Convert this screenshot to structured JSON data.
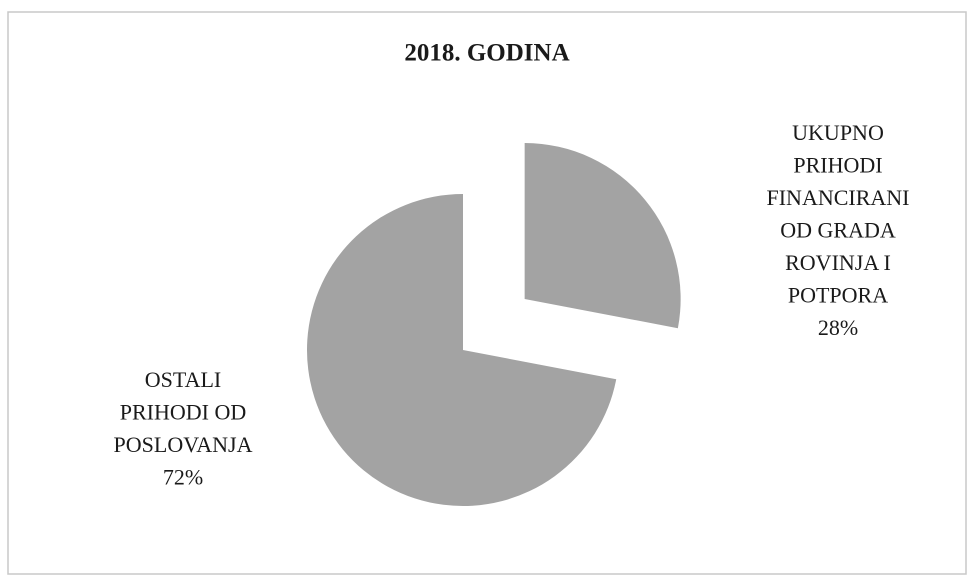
{
  "chart_data": {
    "type": "pie",
    "title": "2018. GODINA",
    "categories": [
      "UKUPNO PRIHODI FINANCIRANI OD GRADA ROVINJA I POTPORA",
      "OSTALI PRIHODI OD POSLOVANJA"
    ],
    "values": [
      28,
      72
    ],
    "value_labels": [
      "28%",
      "72%"
    ],
    "colors": [
      "#a3a3a3",
      "#a3a3a3"
    ],
    "explode": [
      true,
      false
    ]
  }
}
